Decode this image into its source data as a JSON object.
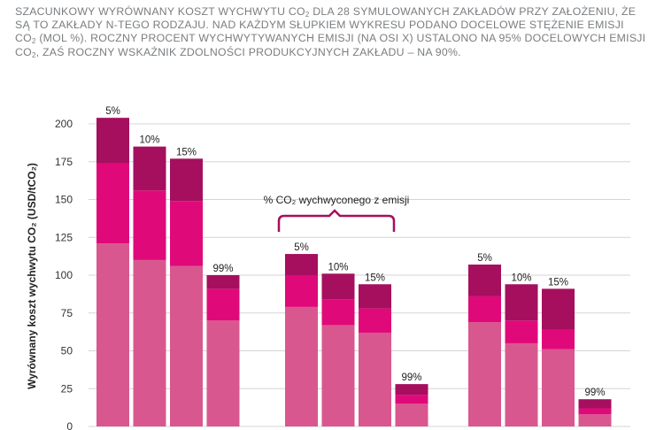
{
  "caption": {
    "p1": "Szacunkowy wyrównany koszt wychwytu CO",
    "s1": "2",
    "p2": " dla 28 symulowanych zakładów przy założeniu, że są to zakłady n-tego rodzaju. Nad każdym słupkiem wykresu podano docelowe stężenie emisji CO",
    "s2": "2",
    "p3": " (mol %). Roczny procent wychwytywanych emisji (na osi X) ustalono na 95% docelowych emisji CO",
    "s3": "2",
    "p4": ", zaś roczny wskaźnik zdolności produkcyjnych zakładu – na 90%."
  },
  "chart_data": {
    "type": "bar",
    "stacked": true,
    "ylabel": "Wyrównany koszt wychwytu CO₂ (USD/tCO₂)",
    "ylim": [
      0,
      200
    ],
    "yticks": [
      0,
      25,
      50,
      75,
      100,
      125,
      150,
      175,
      200
    ],
    "grid": true,
    "annotation": "% CO₂ wychwyconego z emisji",
    "colors": [
      "#d9578f",
      "#e0097a",
      "#a50f5e"
    ],
    "groups": [
      {
        "bars": [
          {
            "label": "5%",
            "segments": [
              121,
              53,
              30
            ]
          },
          {
            "label": "10%",
            "segments": [
              110,
              46,
              29
            ]
          },
          {
            "label": "15%",
            "segments": [
              106,
              43,
              28
            ]
          },
          {
            "label": "99%",
            "segments": [
              70,
              21,
              9
            ]
          }
        ]
      },
      {
        "bars": [
          {
            "label": "5%",
            "segments": [
              79,
              21,
              14
            ]
          },
          {
            "label": "10%",
            "segments": [
              67,
              17,
              17
            ]
          },
          {
            "label": "15%",
            "segments": [
              62,
              16,
              16
            ]
          },
          {
            "label": "99%",
            "segments": [
              15,
              6,
              7
            ]
          }
        ]
      },
      {
        "bars": [
          {
            "label": "5%",
            "segments": [
              69,
              17,
              21
            ]
          },
          {
            "label": "10%",
            "segments": [
              55,
              15,
              24
            ]
          },
          {
            "label": "15%",
            "segments": [
              51,
              13,
              27
            ]
          },
          {
            "label": "99%",
            "segments": [
              8,
              4,
              6
            ]
          }
        ]
      }
    ]
  }
}
